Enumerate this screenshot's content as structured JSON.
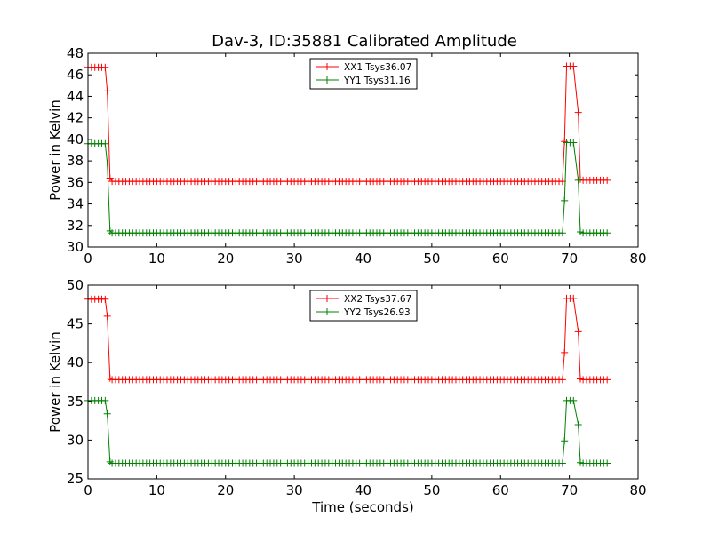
{
  "figure": {
    "title": "Dav-3, ID:35881 Calibrated Amplitude"
  },
  "chart_data": [
    {
      "type": "line",
      "title": "Dav-3, ID:35881 Calibrated Amplitude",
      "xlabel": "",
      "ylabel": "Power in Kelvin",
      "xlim": [
        0,
        80
      ],
      "ylim": [
        30,
        48
      ],
      "xticks": [
        "0",
        "10",
        "20",
        "30",
        "40",
        "50",
        "60",
        "70",
        "80"
      ],
      "yticks": [
        "30",
        "32",
        "34",
        "36",
        "38",
        "40",
        "42",
        "44",
        "46",
        "48"
      ],
      "grid": false,
      "legend_position": "top-center",
      "marker": "+",
      "x_step": 0.5,
      "series": [
        {
          "name": "XX1 Tsys36.07",
          "color": "#ff0000",
          "segments": [
            {
              "x_from": 0,
              "x_to": 2.5,
              "value": 46.7
            },
            {
              "x": 2.8,
              "value": 44.5
            },
            {
              "x": 3.2,
              "value": 36.4
            },
            {
              "x_from": 3.5,
              "x_to": 69.0,
              "value": 36.1
            },
            {
              "x": 69.3,
              "value": 39.8
            },
            {
              "x_from": 69.6,
              "x_to": 71.0,
              "value": 46.8
            },
            {
              "x": 71.3,
              "value": 42.5
            },
            {
              "x": 71.6,
              "value": 36.3
            },
            {
              "x_from": 72.0,
              "x_to": 75.5,
              "value": 36.2
            }
          ]
        },
        {
          "name": "YY1 Tsys31.16",
          "color": "#008000",
          "segments": [
            {
              "x_from": 0,
              "x_to": 2.5,
              "value": 39.6
            },
            {
              "x": 2.8,
              "value": 37.8
            },
            {
              "x": 3.2,
              "value": 31.5
            },
            {
              "x_from": 3.5,
              "x_to": 69.0,
              "value": 31.3
            },
            {
              "x": 69.3,
              "value": 34.3
            },
            {
              "x_from": 69.6,
              "x_to": 71.0,
              "value": 39.7
            },
            {
              "x": 71.3,
              "value": 36.2
            },
            {
              "x": 71.6,
              "value": 31.4
            },
            {
              "x_from": 72.0,
              "x_to": 75.5,
              "value": 31.3
            }
          ]
        }
      ]
    },
    {
      "type": "line",
      "title": "",
      "xlabel": "Time (seconds)",
      "ylabel": "Power in Kelvin",
      "xlim": [
        0,
        80
      ],
      "ylim": [
        25,
        50
      ],
      "xticks": [
        "0",
        "10",
        "20",
        "30",
        "40",
        "50",
        "60",
        "70",
        "80"
      ],
      "yticks": [
        "25",
        "30",
        "35",
        "40",
        "45",
        "50"
      ],
      "grid": false,
      "legend_position": "top-center",
      "marker": "+",
      "x_step": 0.5,
      "series": [
        {
          "name": "XX2 Tsys37.67",
          "color": "#ff0000",
          "segments": [
            {
              "x_from": 0,
              "x_to": 2.5,
              "value": 48.2
            },
            {
              "x": 2.8,
              "value": 46.0
            },
            {
              "x": 3.2,
              "value": 38.0
            },
            {
              "x_from": 3.5,
              "x_to": 69.0,
              "value": 37.8
            },
            {
              "x": 69.3,
              "value": 41.3
            },
            {
              "x_from": 69.6,
              "x_to": 71.0,
              "value": 48.3
            },
            {
              "x": 71.3,
              "value": 44.0
            },
            {
              "x": 71.6,
              "value": 37.9
            },
            {
              "x_from": 72.0,
              "x_to": 75.5,
              "value": 37.8
            }
          ]
        },
        {
          "name": "YY2 Tsys26.93",
          "color": "#008000",
          "segments": [
            {
              "x_from": 0,
              "x_to": 2.5,
              "value": 35.1
            },
            {
              "x": 2.8,
              "value": 33.4
            },
            {
              "x": 3.2,
              "value": 27.2
            },
            {
              "x_from": 3.5,
              "x_to": 69.0,
              "value": 27.0
            },
            {
              "x": 69.3,
              "value": 29.9
            },
            {
              "x_from": 69.6,
              "x_to": 71.0,
              "value": 35.1
            },
            {
              "x": 71.3,
              "value": 32.0
            },
            {
              "x": 71.6,
              "value": 27.1
            },
            {
              "x_from": 72.0,
              "x_to": 75.5,
              "value": 27.0
            }
          ]
        }
      ]
    }
  ]
}
